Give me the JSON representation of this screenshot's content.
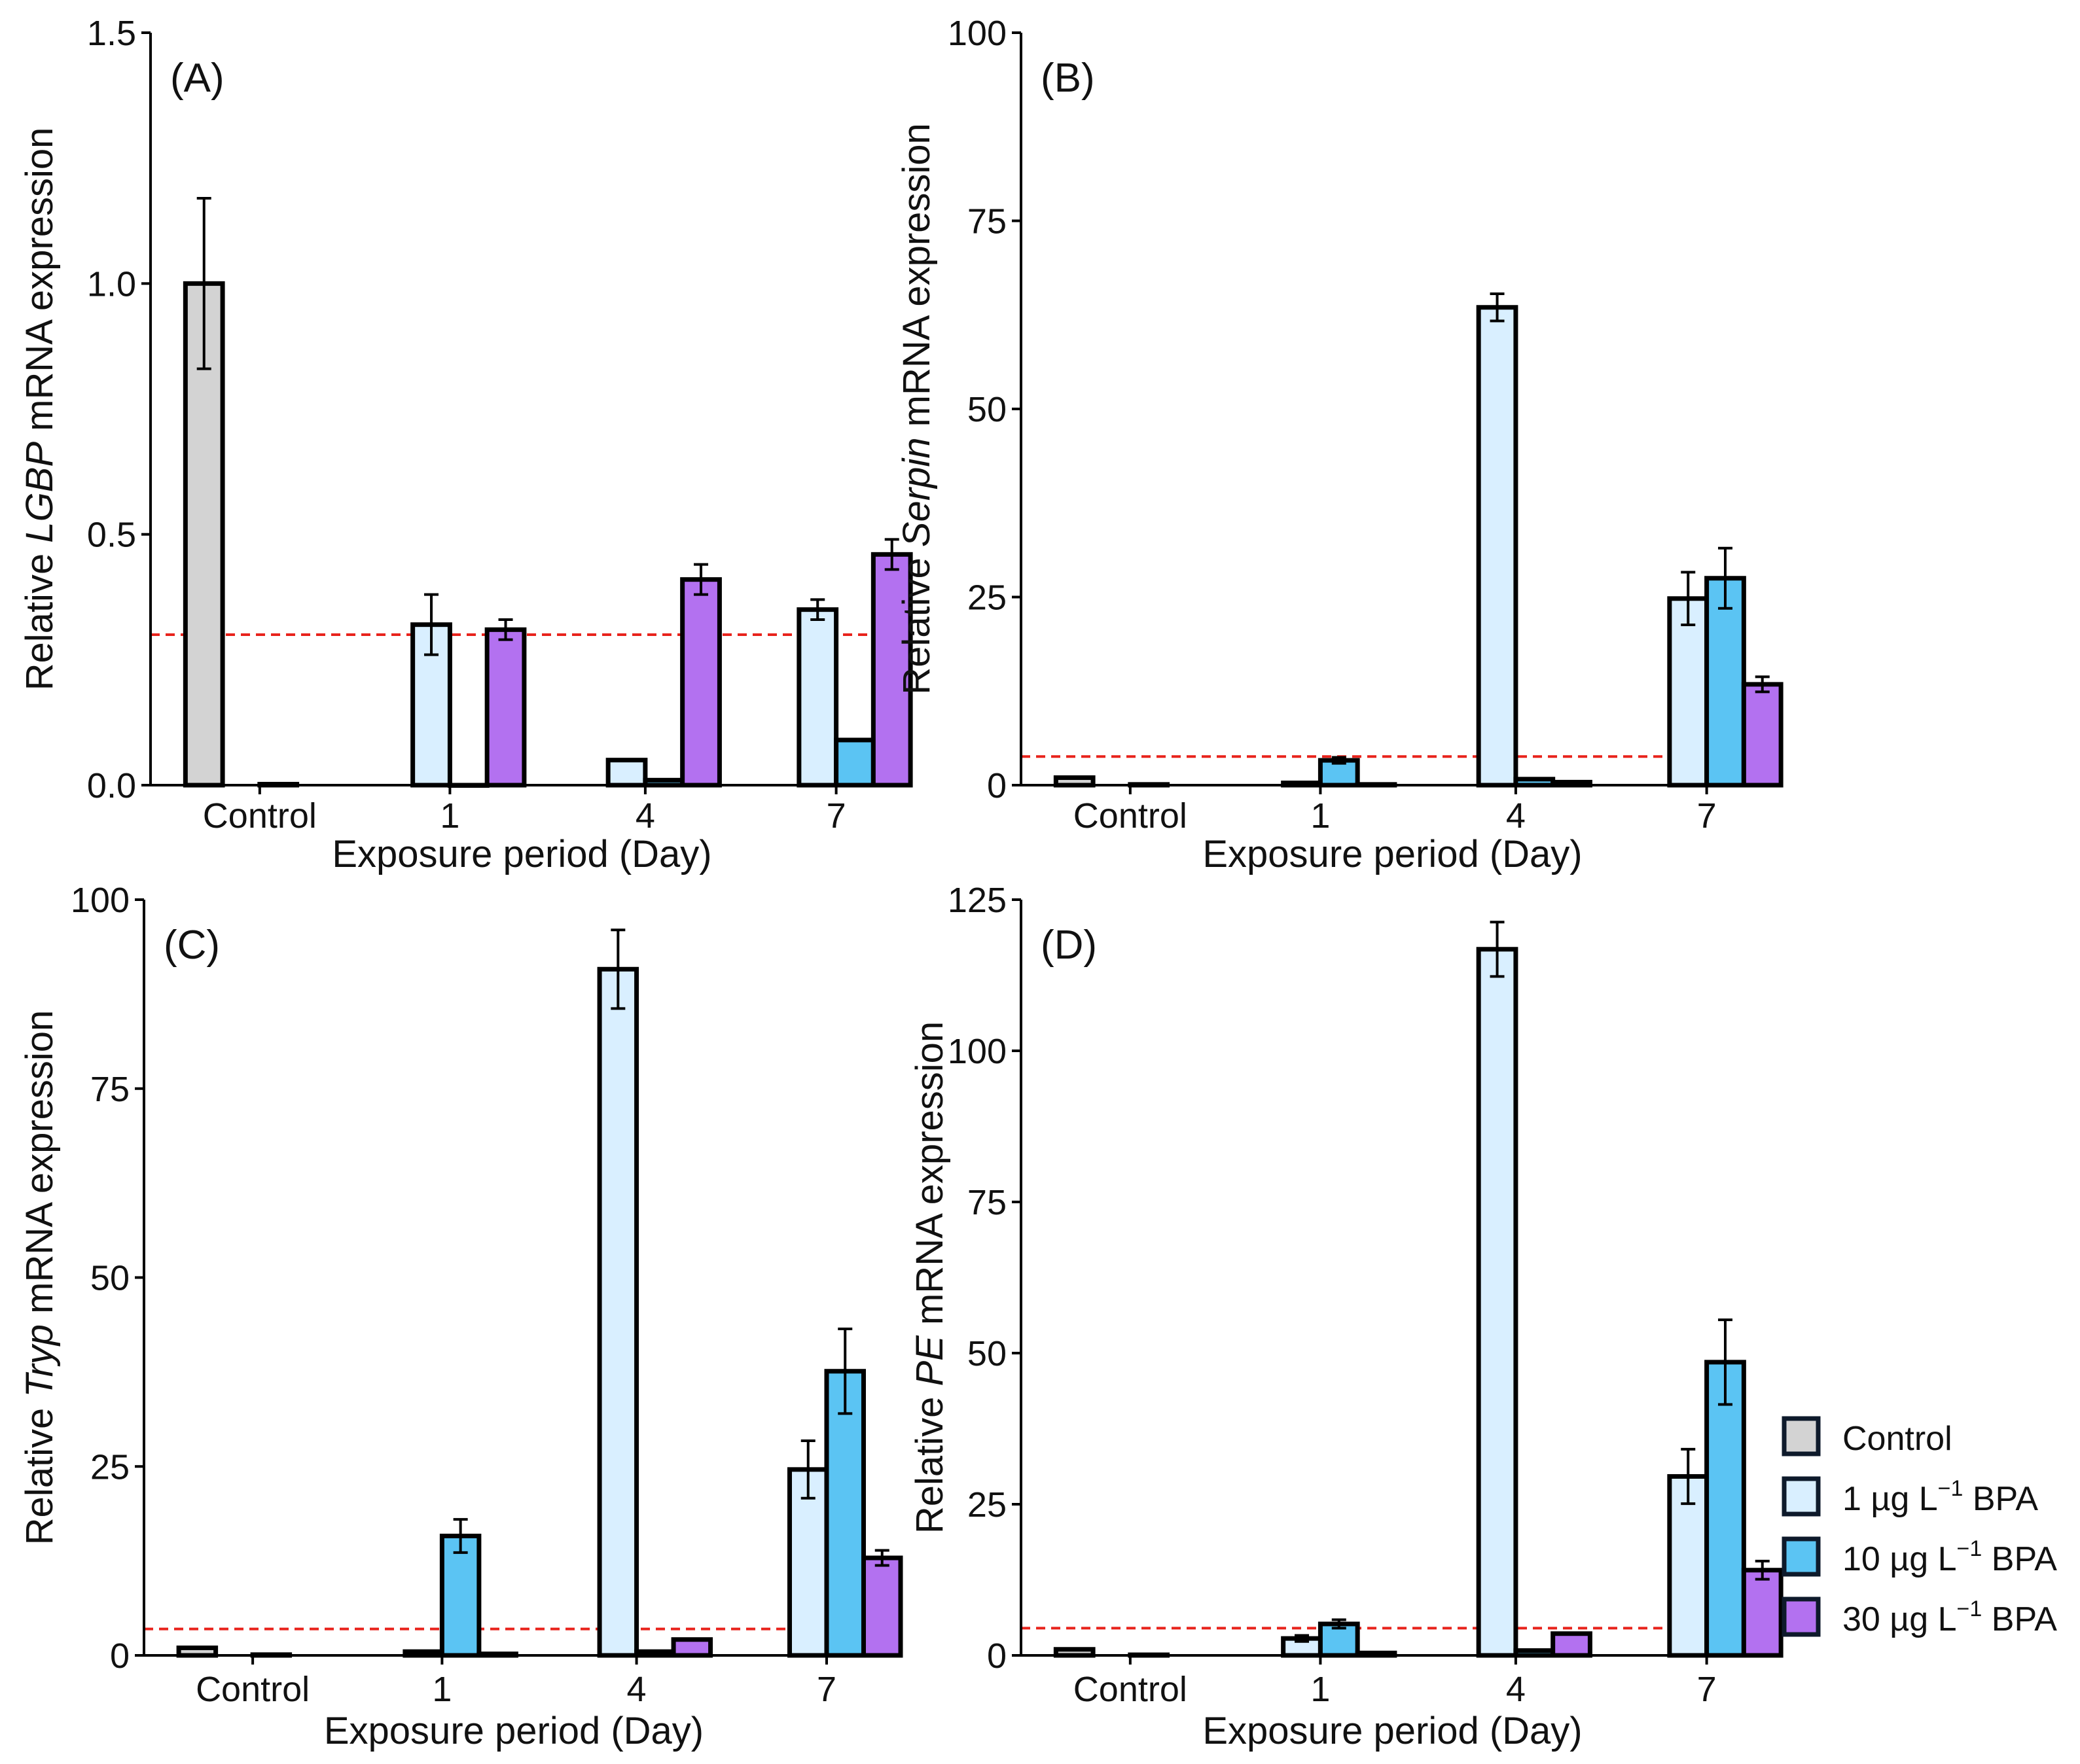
{
  "colors": {
    "control": "#d3d3d3",
    "bpa_1": "#d9efff",
    "bpa_10": "#5bc4f3",
    "bpa_30": "#b371f0",
    "threshold_line": "#e8231c",
    "bar_outline": "#000000"
  },
  "legend": {
    "items": [
      {
        "key": "control",
        "prefix": "Control",
        "sup": "",
        "suffix": ""
      },
      {
        "key": "bpa_1",
        "prefix": "1 µg L",
        "sup": "−1",
        "suffix": " BPA"
      },
      {
        "key": "bpa_10",
        "prefix": "10 µg L",
        "sup": "−1",
        "suffix": " BPA"
      },
      {
        "key": "bpa_30",
        "prefix": "30 µg L",
        "sup": "−1",
        "suffix": " BPA"
      }
    ]
  },
  "chart_data": [
    {
      "type": "bar",
      "panel_label": "(A)",
      "ylabel_parts": [
        "Relative ",
        "LGBP",
        " mRNA expression"
      ],
      "xlabel": "Exposure period (Day)",
      "categories": [
        "Control",
        "1",
        "4",
        "7"
      ],
      "ylim": [
        0,
        1.5
      ],
      "yticks": [
        0,
        0.5,
        1.0,
        1.5
      ],
      "ytick_labels": [
        "0.0",
        "0.5",
        "1.0",
        "1.5"
      ],
      "threshold": 0.3,
      "series": [
        {
          "key": "control",
          "values": [
            1.0,
            null,
            null,
            null
          ],
          "errors": [
            0.17,
            null,
            null,
            null
          ]
        },
        {
          "key": "bpa_1",
          "values": [
            null,
            0.32,
            0.05,
            0.35
          ],
          "errors": [
            null,
            0.06,
            0,
            0.02
          ]
        },
        {
          "key": "bpa_10",
          "values": [
            0.002,
            0.0,
            0.01,
            0.09
          ],
          "errors": [
            0,
            0,
            0,
            0
          ]
        },
        {
          "key": "bpa_30",
          "values": [
            null,
            0.31,
            0.41,
            0.46
          ],
          "errors": [
            null,
            0.02,
            0.03,
            0.03
          ]
        }
      ]
    },
    {
      "type": "bar",
      "panel_label": "(B)",
      "ylabel_parts": [
        "Relative ",
        "Serpin",
        " mRNA expression"
      ],
      "xlabel": "Exposure period (Day)",
      "categories": [
        "Control",
        "1",
        "4",
        "7"
      ],
      "ylim": [
        0,
        100
      ],
      "yticks": [
        0,
        25,
        50,
        75,
        100
      ],
      "ytick_labels": [
        "0",
        "25",
        "50",
        "75",
        "100"
      ],
      "threshold": 3.8,
      "series": [
        {
          "key": "control",
          "values": [
            1.0,
            null,
            null,
            null
          ],
          "errors": [
            0,
            null,
            null,
            null
          ]
        },
        {
          "key": "bpa_1",
          "values": [
            null,
            0.3,
            63.5,
            24.8
          ],
          "errors": [
            null,
            0,
            1.8,
            3.5
          ]
        },
        {
          "key": "bpa_10",
          "values": [
            0.1,
            3.3,
            0.8,
            27.5
          ],
          "errors": [
            0,
            0.4,
            0,
            4.0
          ]
        },
        {
          "key": "bpa_30",
          "values": [
            null,
            0.1,
            0.4,
            13.4
          ],
          "errors": [
            null,
            0,
            0,
            1.0
          ]
        }
      ]
    },
    {
      "type": "bar",
      "panel_label": "(C)",
      "ylabel_parts": [
        "Relative ",
        "Tryp",
        " mRNA expression"
      ],
      "xlabel": "Exposure period (Day)",
      "categories": [
        "Control",
        "1",
        "4",
        "7"
      ],
      "ylim": [
        0,
        100
      ],
      "yticks": [
        0,
        25,
        50,
        75,
        100
      ],
      "ytick_labels": [
        "0",
        "25",
        "50",
        "75",
        "100"
      ],
      "threshold": 3.5,
      "series": [
        {
          "key": "control",
          "values": [
            1.0,
            null,
            null,
            null
          ],
          "errors": [
            0,
            null,
            null,
            null
          ]
        },
        {
          "key": "bpa_1",
          "values": [
            null,
            0.5,
            90.8,
            24.6
          ],
          "errors": [
            null,
            0,
            5.2,
            3.8
          ]
        },
        {
          "key": "bpa_10",
          "values": [
            0.1,
            15.8,
            0.5,
            37.6
          ],
          "errors": [
            0,
            2.2,
            0,
            5.6
          ]
        },
        {
          "key": "bpa_30",
          "values": [
            null,
            0.2,
            2.1,
            12.9
          ],
          "errors": [
            null,
            0,
            0,
            1.0
          ]
        }
      ]
    },
    {
      "type": "bar",
      "panel_label": "(D)",
      "ylabel_parts": [
        "Relative ",
        "PE",
        " mRNA expression"
      ],
      "xlabel": "Exposure period (Day)",
      "categories": [
        "Control",
        "1",
        "4",
        "7"
      ],
      "ylim": [
        0,
        125
      ],
      "yticks": [
        0,
        25,
        50,
        75,
        100,
        125
      ],
      "ytick_labels": [
        "0",
        "25",
        "50",
        "75",
        "100",
        "125"
      ],
      "threshold": 4.5,
      "series": [
        {
          "key": "control",
          "values": [
            1.0,
            null,
            null,
            null
          ],
          "errors": [
            0,
            null,
            null,
            null
          ]
        },
        {
          "key": "bpa_1",
          "values": [
            null,
            2.8,
            116.8,
            29.6
          ],
          "errors": [
            null,
            0.5,
            4.5,
            4.5
          ]
        },
        {
          "key": "bpa_10",
          "values": [
            0.1,
            5.2,
            0.8,
            48.5
          ],
          "errors": [
            0,
            0.7,
            0,
            7.0
          ]
        },
        {
          "key": "bpa_30",
          "values": [
            null,
            0.4,
            3.6,
            14.1
          ],
          "errors": [
            null,
            0,
            0,
            1.5
          ]
        }
      ]
    }
  ]
}
